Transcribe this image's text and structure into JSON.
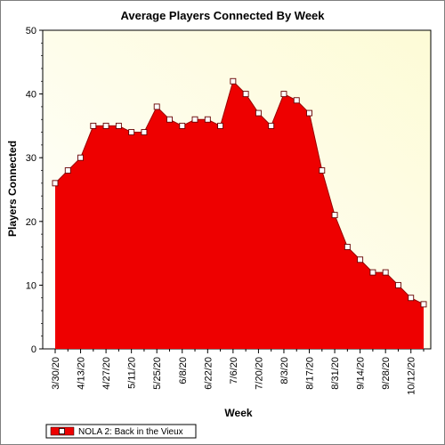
{
  "chart_data": {
    "type": "area",
    "title": "Average Players Connected By Week",
    "xlabel": "Week",
    "ylabel": "Players Connected",
    "ylim": [
      0,
      50
    ],
    "yticks": [
      0,
      10,
      20,
      30,
      40,
      50
    ],
    "xtick_labels": [
      "3/30/20",
      "4/13/20",
      "4/27/20",
      "5/11/20",
      "5/25/20",
      "6/8/20",
      "6/22/20",
      "7/6/20",
      "7/20/20",
      "8/3/20",
      "8/17/20",
      "8/31/20",
      "9/14/20",
      "9/28/20",
      "10/12/20"
    ],
    "x": [
      "3/30/20",
      "4/6/20",
      "4/13/20",
      "4/20/20",
      "4/27/20",
      "5/4/20",
      "5/11/20",
      "5/18/20",
      "5/25/20",
      "6/1/20",
      "6/8/20",
      "6/15/20",
      "6/22/20",
      "6/29/20",
      "7/6/20",
      "7/13/20",
      "7/20/20",
      "7/27/20",
      "8/3/20",
      "8/10/20",
      "8/17/20",
      "8/24/20",
      "8/31/20",
      "9/7/20",
      "9/14/20",
      "9/21/20",
      "9/28/20",
      "10/5/20",
      "10/12/20",
      "10/19/20"
    ],
    "series": [
      {
        "name": "NOLA 2: Back in the Vieux",
        "color": "#ee0000",
        "values": [
          26,
          28,
          30,
          35,
          35,
          35,
          34,
          34,
          38,
          36,
          35,
          36,
          36,
          35,
          42,
          40,
          37,
          35,
          40,
          39,
          37,
          28,
          21,
          16,
          14,
          12,
          12,
          10,
          8,
          7
        ]
      }
    ],
    "grid": false,
    "legend_position": "bottom-left",
    "background": "gradient-white-to-cream"
  }
}
